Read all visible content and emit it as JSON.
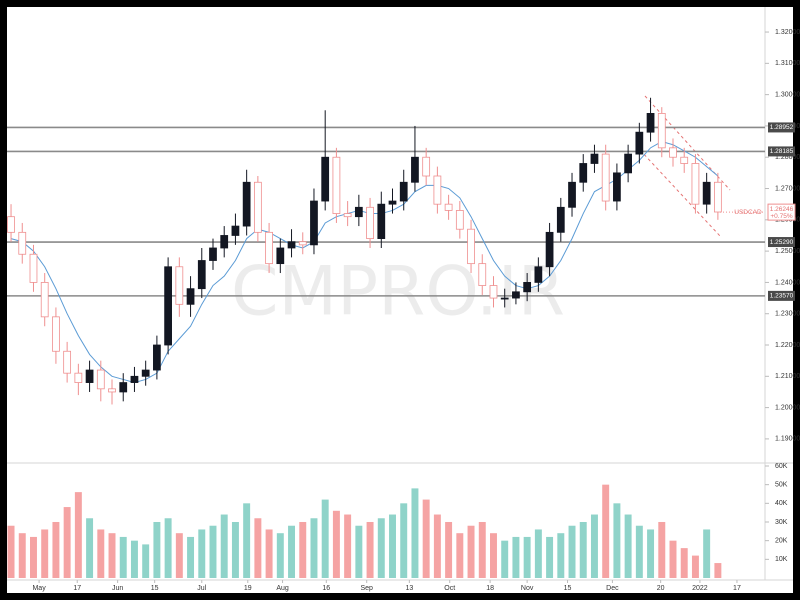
{
  "chart_data": {
    "type": "candlestick",
    "symbol": "USDCAD",
    "watermark": "CMPRO.IR",
    "up_color": "#131722",
    "down_color": "#ef8f8f",
    "volume_up_color": "#8fd3c9",
    "volume_down_color": "#f5a3a3",
    "ma_color": "#5b9bd5",
    "level_color": "#8a8a8a",
    "open": [
      1.261,
      1.256,
      1.249,
      1.24,
      1.229,
      1.218,
      1.211,
      1.208,
      1.212,
      1.206,
      1.205,
      1.208,
      1.21,
      1.212,
      1.22,
      1.245,
      1.233,
      1.238,
      1.247,
      1.251,
      1.255,
      1.258,
      1.272,
      1.256,
      1.246,
      1.251,
      1.253,
      1.252,
      1.266,
      1.28,
      1.262,
      1.261,
      1.264,
      1.254,
      1.265,
      1.266,
      1.272,
      1.28,
      1.274,
      1.265,
      1.263,
      1.257,
      1.246,
      1.239,
      1.235,
      1.235,
      1.237,
      1.24,
      1.245,
      1.256,
      1.264,
      1.272,
      1.278,
      1.281,
      1.266,
      1.275,
      1.281,
      1.288,
      1.294,
      1.283,
      1.28,
      1.278,
      1.265,
      1.272
    ],
    "high": [
      1.265,
      1.259,
      1.252,
      1.243,
      1.232,
      1.221,
      1.214,
      1.215,
      1.215,
      1.209,
      1.211,
      1.213,
      1.215,
      1.223,
      1.248,
      1.248,
      1.242,
      1.251,
      1.254,
      1.258,
      1.262,
      1.276,
      1.274,
      1.259,
      1.254,
      1.257,
      1.256,
      1.27,
      1.295,
      1.283,
      1.266,
      1.268,
      1.267,
      1.269,
      1.27,
      1.276,
      1.29,
      1.283,
      1.277,
      1.268,
      1.266,
      1.26,
      1.249,
      1.242,
      1.238,
      1.24,
      1.243,
      1.248,
      1.259,
      1.267,
      1.275,
      1.281,
      1.284,
      1.284,
      1.278,
      1.284,
      1.291,
      1.299,
      1.296,
      1.286,
      1.283,
      1.281,
      1.275,
      1.275
    ],
    "low": [
      1.253,
      1.246,
      1.237,
      1.226,
      1.214,
      1.208,
      1.204,
      1.205,
      1.202,
      1.201,
      1.202,
      1.205,
      1.207,
      1.209,
      1.217,
      1.229,
      1.229,
      1.235,
      1.244,
      1.248,
      1.252,
      1.255,
      1.253,
      1.243,
      1.243,
      1.248,
      1.249,
      1.249,
      1.263,
      1.259,
      1.258,
      1.258,
      1.251,
      1.251,
      1.262,
      1.263,
      1.269,
      1.271,
      1.262,
      1.26,
      1.254,
      1.243,
      1.236,
      1.232,
      1.232,
      1.233,
      1.234,
      1.237,
      1.242,
      1.253,
      1.261,
      1.269,
      1.275,
      1.263,
      1.263,
      1.272,
      1.278,
      1.285,
      1.28,
      1.277,
      1.275,
      1.262,
      1.262,
      1.26
    ],
    "close": [
      1.256,
      1.249,
      1.24,
      1.229,
      1.218,
      1.211,
      1.208,
      1.212,
      1.206,
      1.205,
      1.208,
      1.21,
      1.212,
      1.22,
      1.245,
      1.233,
      1.238,
      1.247,
      1.251,
      1.255,
      1.258,
      1.272,
      1.256,
      1.246,
      1.251,
      1.253,
      1.252,
      1.266,
      1.28,
      1.262,
      1.261,
      1.264,
      1.254,
      1.265,
      1.266,
      1.272,
      1.28,
      1.274,
      1.265,
      1.263,
      1.257,
      1.246,
      1.239,
      1.235,
      1.235,
      1.237,
      1.24,
      1.245,
      1.256,
      1.264,
      1.272,
      1.278,
      1.281,
      1.266,
      1.275,
      1.281,
      1.288,
      1.294,
      1.283,
      1.28,
      1.278,
      1.265,
      1.272,
      1.2625
    ],
    "ma": [
      1.254,
      1.253,
      1.25,
      1.245,
      1.238,
      1.23,
      1.223,
      1.217,
      1.213,
      1.21,
      1.209,
      1.208,
      1.209,
      1.211,
      1.218,
      1.222,
      1.226,
      1.233,
      1.239,
      1.242,
      1.247,
      1.254,
      1.257,
      1.256,
      1.254,
      1.252,
      1.251,
      1.253,
      1.259,
      1.261,
      1.262,
      1.263,
      1.262,
      1.262,
      1.263,
      1.265,
      1.269,
      1.271,
      1.271,
      1.27,
      1.267,
      1.261,
      1.254,
      1.247,
      1.242,
      1.239,
      1.238,
      1.239,
      1.242,
      1.247,
      1.254,
      1.262,
      1.269,
      1.271,
      1.273,
      1.276,
      1.279,
      1.283,
      1.285,
      1.284,
      1.282,
      1.28,
      1.277,
      1.274
    ],
    "volume": [
      28000,
      24000,
      22000,
      26000,
      30000,
      38000,
      46000,
      32000,
      26000,
      24000,
      22000,
      20000,
      18000,
      30000,
      32000,
      24000,
      22000,
      26000,
      28000,
      34000,
      30000,
      40000,
      32000,
      26000,
      24000,
      28000,
      30000,
      32000,
      42000,
      36000,
      34000,
      28000,
      30000,
      32000,
      34000,
      40000,
      48000,
      42000,
      34000,
      30000,
      24000,
      28000,
      30000,
      24000,
      20000,
      22000,
      22000,
      26000,
      22000,
      24000,
      28000,
      30000,
      34000,
      50000,
      40000,
      34000,
      28000,
      26000,
      30000,
      20000,
      16000,
      12000,
      26000,
      8000
    ],
    "xlim": [
      -0.36,
      67.2
    ],
    "xticks": [
      {
        "value": 2.5,
        "label": "May"
      },
      {
        "value": 5.9,
        "label": "17"
      },
      {
        "value": 9.5,
        "label": "Jun"
      },
      {
        "value": 12.8,
        "label": "15"
      },
      {
        "value": 17,
        "label": "Jul"
      },
      {
        "value": 21.1,
        "label": "19"
      },
      {
        "value": 24.2,
        "label": "Aug"
      },
      {
        "value": 28.1,
        "label": "16"
      },
      {
        "value": 31.7,
        "label": "Sep"
      },
      {
        "value": 35.5,
        "label": "13"
      },
      {
        "value": 39.1,
        "label": "Oct"
      },
      {
        "value": 42.7,
        "label": "18"
      },
      {
        "value": 46,
        "label": "Nov"
      },
      {
        "value": 49.6,
        "label": "15"
      },
      {
        "value": 53.6,
        "label": "Dec"
      },
      {
        "value": 57.9,
        "label": "20"
      },
      {
        "value": 61.4,
        "label": "2022"
      },
      {
        "value": 64.7,
        "label": "17"
      }
    ],
    "ylim": [
      1.1823,
      1.328
    ],
    "yticks": [
      {
        "value": 1.19,
        "label": "1.19000"
      },
      {
        "value": 1.2,
        "label": "1.20000"
      },
      {
        "value": 1.21,
        "label": "1.21000"
      },
      {
        "value": 1.22,
        "label": "1.22000"
      },
      {
        "value": 1.23,
        "label": "1.23000"
      },
      {
        "value": 1.24,
        "label": "1.24000"
      },
      {
        "value": 1.25,
        "label": "1.25000"
      },
      {
        "value": 1.26,
        "label": "1.26000"
      },
      {
        "value": 1.27,
        "label": "1.27000"
      },
      {
        "value": 1.28,
        "label": "1.28000"
      },
      {
        "value": 1.29,
        "label": "1.29000"
      },
      {
        "value": 1.3,
        "label": "1.30000"
      },
      {
        "value": 1.31,
        "label": "1.31000"
      },
      {
        "value": 1.32,
        "label": "1.32000"
      }
    ],
    "levels": [
      {
        "value": 1.28952,
        "label": "1.28952"
      },
      {
        "value": 1.28185,
        "label": "1.28185"
      },
      {
        "value": 1.2529,
        "label": "1.25290"
      },
      {
        "value": 1.2357,
        "label": "1.23570"
      }
    ],
    "last_price": {
      "value": 1.26246,
      "label": "1.26246"
    },
    "change": "+0.75%",
    "volume_ylim": [
      0,
      61600
    ],
    "volume_ticks": [
      {
        "value": 10000,
        "label": "10K"
      },
      {
        "value": 20000,
        "label": "20K"
      },
      {
        "value": 30000,
        "label": "30K"
      },
      {
        "value": 40000,
        "label": "40K"
      },
      {
        "value": 50000,
        "label": "50K"
      },
      {
        "value": 60000,
        "label": "60K"
      }
    ]
  }
}
